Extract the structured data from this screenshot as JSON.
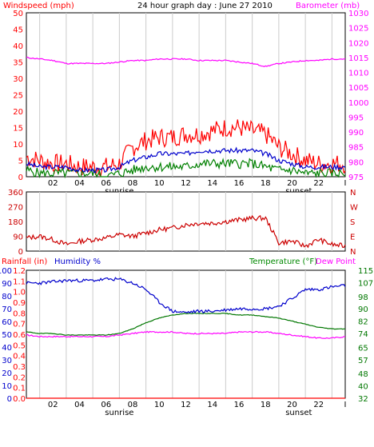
{
  "colors": {
    "wind": "#ff0000",
    "wind_avg": "#0000cc",
    "wind_low": "#008000",
    "baro": "#ff00ff",
    "wdir": "#cc0000",
    "humidity": "#0000cc",
    "temperature": "#007700",
    "dewpoint": "#ff00ff",
    "rainfall": "#ff0000",
    "grid": "#cccccc",
    "frame": "#000000"
  },
  "chart_data": [
    {
      "type": "line",
      "title": "24 hour graph day : June 27 2010",
      "ylabel_left": "Windspeed (mph)",
      "ylabel_right": "Barometer (mb)",
      "x_ticks": [
        "02",
        "04",
        "06",
        "08",
        "10",
        "12",
        "14",
        "16",
        "18",
        "20",
        "22",
        "I"
      ],
      "x_annotations": [
        "sunrise",
        "sunset"
      ],
      "yleft_ticks": [
        "0",
        "5",
        "10",
        "15",
        "20",
        "25",
        "30",
        "35",
        "40",
        "45",
        "50"
      ],
      "yleft_lim": [
        0,
        50
      ],
      "yright_ticks": [
        "975",
        "980",
        "985",
        "990",
        "995",
        "1000",
        "1005",
        "1010",
        "1015",
        "1020",
        "1025",
        "1030"
      ],
      "yright_lim": [
        975,
        1030
      ],
      "grid": "vertical",
      "hours": [
        0,
        1,
        2,
        3,
        4,
        5,
        6,
        7,
        8,
        9,
        10,
        11,
        12,
        13,
        14,
        15,
        16,
        17,
        18,
        19,
        20,
        21,
        22,
        23,
        24
      ],
      "series": [
        {
          "key": "gust",
          "values": [
            6,
            5,
            4,
            4,
            3,
            3,
            3,
            4,
            9,
            11,
            12,
            12,
            13,
            13,
            14,
            15,
            15,
            14,
            13,
            9,
            7,
            5,
            4,
            4,
            4
          ]
        },
        {
          "key": "avg",
          "values": [
            4,
            3,
            3,
            3,
            2,
            2,
            2,
            3,
            5,
            6,
            7,
            7,
            7,
            8,
            8,
            8,
            8,
            8,
            7,
            5,
            4,
            3,
            3,
            3,
            3
          ]
        },
        {
          "key": "low",
          "values": [
            2,
            1,
            1,
            1,
            1,
            1,
            0,
            1,
            2,
            3,
            3,
            3,
            3,
            4,
            4,
            4,
            4,
            4,
            3,
            2,
            2,
            1,
            1,
            1,
            1
          ]
        },
        {
          "key": "baro",
          "values": [
            1015,
            1014.5,
            1014,
            1013,
            1013,
            1013,
            1013,
            1013.5,
            1014,
            1014,
            1014.5,
            1014.5,
            1014.5,
            1014,
            1014,
            1014,
            1013.5,
            1013,
            1012,
            1013,
            1013.5,
            1014,
            1014,
            1014.5,
            1014.5
          ]
        }
      ]
    },
    {
      "type": "line",
      "ylabel_right_letters": [
        "N",
        "W",
        "S",
        "E",
        "N"
      ],
      "yleft_ticks": [
        "0",
        "90",
        "180",
        "270",
        "360"
      ],
      "yleft_lim": [
        0,
        360
      ],
      "grid": "vertical",
      "hours": [
        0,
        1,
        2,
        3,
        4,
        5,
        6,
        7,
        8,
        9,
        10,
        11,
        12,
        13,
        14,
        15,
        16,
        17,
        18,
        19,
        20,
        21,
        22,
        23,
        24
      ],
      "series": [
        {
          "key": "wind_direction",
          "values": [
            80,
            90,
            70,
            40,
            60,
            70,
            80,
            100,
            90,
            110,
            130,
            140,
            160,
            170,
            170,
            180,
            190,
            200,
            200,
            50,
            60,
            30,
            70,
            40,
            30
          ]
        }
      ]
    },
    {
      "type": "line",
      "ylabel_left_rain": "Rainfall (in)",
      "ylabel_left_hum": "Humidity %",
      "ylabel_right_temp": "Temperature (°F)",
      "ylabel_right_dew": "Dew Point",
      "x_ticks": [
        "02",
        "04",
        "06",
        "08",
        "10",
        "12",
        "14",
        "16",
        "18",
        "20",
        "22",
        "I"
      ],
      "x_annotations": [
        "sunrise",
        "sunset"
      ],
      "rain_ticks": [
        "0.0",
        "0.1",
        "0.2",
        "0.3",
        "0.4",
        "0.5",
        "0.6",
        "0.7",
        "0.8",
        "0.9",
        "1.0",
        "1.1",
        "1.2"
      ],
      "rain_lim": [
        0,
        1.2
      ],
      "hum_ticks": [
        "0",
        "10",
        "20",
        "30",
        "40",
        "50",
        "60",
        "70",
        "80",
        "90",
        "100"
      ],
      "hum_lim": [
        0,
        100
      ],
      "temp_ticks": [
        "32",
        "40",
        "48",
        "57",
        "65",
        "74",
        "82",
        "90",
        "98",
        "107",
        "115"
      ],
      "temp_lim": [
        32,
        115
      ],
      "grid": "vertical",
      "hours": [
        0,
        1,
        2,
        3,
        4,
        5,
        6,
        7,
        8,
        9,
        10,
        11,
        12,
        13,
        14,
        15,
        16,
        17,
        18,
        19,
        20,
        21,
        22,
        23,
        24
      ],
      "series": [
        {
          "key": "humidity",
          "values": [
            90,
            90,
            91,
            92,
            92,
            92,
            93,
            93,
            90,
            85,
            75,
            68,
            67,
            68,
            68,
            69,
            70,
            70,
            70,
            72,
            78,
            85,
            85,
            87,
            88
          ]
        },
        {
          "key": "temperature",
          "values": [
            75,
            74,
            74,
            73,
            73,
            73,
            73,
            74,
            77,
            81,
            84,
            86,
            87,
            87,
            87,
            87,
            86,
            86,
            85,
            84,
            82,
            80,
            78,
            77,
            77
          ]
        },
        {
          "key": "dewpoint",
          "values": [
            73,
            72,
            72,
            72,
            72,
            72,
            72,
            73,
            74,
            75,
            75,
            75,
            74,
            74,
            74,
            74,
            75,
            75,
            75,
            74,
            73,
            72,
            71,
            71,
            72
          ]
        },
        {
          "key": "rainfall",
          "values": [
            0,
            0,
            0,
            0,
            0,
            0,
            0,
            0,
            0,
            0,
            0,
            0,
            0,
            0,
            0,
            0,
            0,
            0,
            0,
            0,
            0,
            0,
            0,
            0,
            0
          ]
        }
      ]
    }
  ]
}
